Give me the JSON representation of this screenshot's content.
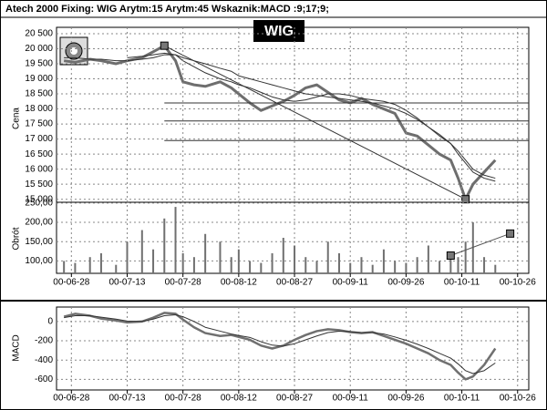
{
  "header": "Atech 2000  Fixing: WIG Arytm:15 Arytm:45  Wskaznik:MACD :9;17;9;",
  "chart_data": [
    {
      "type": "line",
      "title": "WIG",
      "ylabel": "Cena",
      "x": [
        "00-06-26",
        "00-06-29",
        "00-07-03",
        "00-07-06",
        "00-07-10",
        "00-07-13",
        "00-07-17",
        "00-07-20",
        "00-07-23",
        "00-07-26",
        "00-07-28",
        "00-07-31",
        "00-08-03",
        "00-08-07",
        "00-08-10",
        "00-08-12",
        "00-08-15",
        "00-08-18",
        "00-08-21",
        "00-08-24",
        "00-08-27",
        "00-08-30",
        "00-09-02",
        "00-09-05",
        "00-09-08",
        "00-09-11",
        "00-09-14",
        "00-09-17",
        "00-09-20",
        "00-09-23",
        "00-09-26",
        "00-09-29",
        "00-10-02",
        "00-10-05",
        "00-10-08",
        "00-10-10",
        "00-10-12",
        "00-10-14",
        "00-10-17",
        "00-10-20"
      ],
      "xlim": [
        "00-06-24",
        "00-10-29"
      ],
      "ylim": [
        14900,
        20710
      ],
      "yticks": [
        {
          "value": 15000,
          "label": "15 000"
        },
        {
          "value": 15500,
          "label": "15 500"
        },
        {
          "value": 16000,
          "label": "16 000"
        },
        {
          "value": 16500,
          "label": "16 500"
        },
        {
          "value": 17000,
          "label": "17 000"
        },
        {
          "value": 17500,
          "label": "17 500"
        },
        {
          "value": 18000,
          "label": "18 000"
        },
        {
          "value": 18500,
          "label": "18 500"
        },
        {
          "value": 19000,
          "label": "19 000"
        },
        {
          "value": 19500,
          "label": "19 500"
        },
        {
          "value": 20000,
          "label": "20 000"
        },
        {
          "value": 20500,
          "label": "20 500"
        }
      ],
      "grid": true,
      "series": [
        {
          "color": "#6e6e6e",
          "width": 3,
          "values": [
            19600,
            19550,
            19650,
            19600,
            19500,
            19600,
            19700,
            19900,
            20100,
            19600,
            18900,
            18800,
            18750,
            18900,
            18700,
            18500,
            18200,
            17950,
            18100,
            18250,
            18450,
            18700,
            18800,
            18550,
            18300,
            18200,
            18350,
            18150,
            18000,
            17850,
            17200,
            17100,
            16800,
            16500,
            16300,
            15700,
            15000,
            15500,
            15900,
            16300
          ]
        },
        {
          "color": "#333333",
          "width": 1,
          "values": [
            19700,
            19700,
            19650,
            19650,
            19600,
            19600,
            19650,
            19700,
            19800,
            19800,
            19600,
            19400,
            19200,
            19000,
            18900,
            18800,
            18700,
            18550,
            18400,
            18300,
            18250,
            18300,
            18400,
            18500,
            18500,
            18450,
            18350,
            18300,
            18250,
            18150,
            17950,
            17700,
            17400,
            17100,
            16850,
            16500,
            16200,
            15900,
            15700,
            15600
          ]
        },
        {
          "color": "#333333",
          "width": 1,
          "values": [
            null,
            null,
            null,
            null,
            null,
            19700,
            19750,
            19800,
            19850,
            19800,
            19700,
            19600,
            19500,
            19350,
            19250,
            19100,
            19000,
            18900,
            18800,
            18700,
            18600,
            18500,
            18450,
            18400,
            18350,
            18300,
            18250,
            18200,
            18100,
            18000,
            17850,
            17650,
            17400,
            17150,
            16850,
            16600,
            16300,
            16000,
            15800,
            15700
          ]
        },
        {
          "color": "#333333",
          "width": 1,
          "markers": true,
          "x": [
            "00-07-23",
            "00-10-12"
          ],
          "values": [
            20100,
            15000
          ]
        },
        {
          "color": "#333333",
          "width": 1,
          "x": [
            "00-07-23",
            "00-10-29"
          ],
          "values": [
            18200,
            18200
          ]
        },
        {
          "color": "#333333",
          "width": 1,
          "x": [
            "00-07-23",
            "00-10-29"
          ],
          "values": [
            17600,
            17600
          ]
        },
        {
          "color": "#333333",
          "width": 1,
          "x": [
            "00-07-23",
            "00-10-29"
          ],
          "values": [
            16950,
            16950
          ]
        }
      ]
    },
    {
      "type": "bar",
      "ylabel": "Obrót",
      "x": [
        "00-06-26",
        "00-06-29",
        "00-07-03",
        "00-07-06",
        "00-07-10",
        "00-07-13",
        "00-07-17",
        "00-07-20",
        "00-07-23",
        "00-07-26",
        "00-07-28",
        "00-07-31",
        "00-08-03",
        "00-08-07",
        "00-08-10",
        "00-08-12",
        "00-08-15",
        "00-08-18",
        "00-08-21",
        "00-08-24",
        "00-08-27",
        "00-08-30",
        "00-09-02",
        "00-09-05",
        "00-09-08",
        "00-09-11",
        "00-09-14",
        "00-09-17",
        "00-09-20",
        "00-09-23",
        "00-09-26",
        "00-09-29",
        "00-10-02",
        "00-10-05",
        "00-10-08",
        "00-10-10",
        "00-10-12",
        "00-10-14",
        "00-10-17",
        "00-10-20"
      ],
      "xlim": [
        "00-06-24",
        "00-10-29"
      ],
      "xticks": [
        "00-06-28",
        "00-07-13",
        "00-07-28",
        "00-08-12",
        "00-08-27",
        "00-09-11",
        "00-09-26",
        "00-10-11",
        "00-10-26"
      ],
      "ylim": [
        68,
        252
      ],
      "yticks": [
        {
          "value": 100,
          "label": "100,00"
        },
        {
          "value": 150,
          "label": "150,00"
        },
        {
          "value": 200,
          "label": "200,00"
        },
        {
          "value": 250,
          "label": "250,00"
        }
      ],
      "grid": true,
      "series": [
        {
          "color": "#707070",
          "values": [
            100,
            95,
            110,
            120,
            90,
            150,
            180,
            130,
            210,
            240,
            120,
            110,
            170,
            150,
            110,
            130,
            100,
            95,
            120,
            160,
            140,
            110,
            100,
            150,
            120,
            95,
            110,
            90,
            130,
            100,
            95,
            110,
            140,
            100,
            120,
            110,
            150,
            200,
            110,
            90
          ]
        },
        {
          "type": "line",
          "color": "#555555",
          "width": 1,
          "markers": true,
          "x": [
            "00-10-08",
            "00-10-24"
          ],
          "values": [
            114,
            171
          ]
        }
      ]
    },
    {
      "type": "line",
      "ylabel": "MACD",
      "x": [
        "00-06-26",
        "00-06-29",
        "00-07-03",
        "00-07-06",
        "00-07-10",
        "00-07-13",
        "00-07-17",
        "00-07-20",
        "00-07-23",
        "00-07-26",
        "00-07-28",
        "00-07-31",
        "00-08-03",
        "00-08-07",
        "00-08-10",
        "00-08-12",
        "00-08-15",
        "00-08-18",
        "00-08-21",
        "00-08-24",
        "00-08-27",
        "00-08-30",
        "00-09-02",
        "00-09-05",
        "00-09-08",
        "00-09-11",
        "00-09-14",
        "00-09-17",
        "00-09-20",
        "00-09-23",
        "00-09-26",
        "00-09-29",
        "00-10-02",
        "00-10-05",
        "00-10-08",
        "00-10-10",
        "00-10-12",
        "00-10-14",
        "00-10-17",
        "00-10-20"
      ],
      "xlim": [
        "00-06-24",
        "00-10-29"
      ],
      "xticks": [
        "00-06-28",
        "00-07-13",
        "00-07-28",
        "00-08-12",
        "00-08-27",
        "00-09-11",
        "00-09-26",
        "00-10-11",
        "00-10-26"
      ],
      "ylim": [
        -710,
        150
      ],
      "yticks": [
        -600,
        -400,
        -200,
        0
      ],
      "grid": true,
      "series": [
        {
          "color": "#707070",
          "width": 2.5,
          "values": [
            50,
            80,
            60,
            30,
            10,
            -10,
            0,
            40,
            90,
            80,
            20,
            -60,
            -120,
            -150,
            -140,
            -160,
            -190,
            -250,
            -280,
            -250,
            -190,
            -140,
            -100,
            -80,
            -90,
            -110,
            -120,
            -110,
            -150,
            -190,
            -230,
            -280,
            -330,
            -400,
            -450,
            -530,
            -600,
            -570,
            -450,
            -280
          ]
        },
        {
          "color": "#333333",
          "width": 1,
          "values": [
            40,
            60,
            60,
            45,
            25,
            5,
            0,
            25,
            60,
            70,
            50,
            0,
            -60,
            -100,
            -130,
            -145,
            -165,
            -210,
            -245,
            -255,
            -230,
            -190,
            -150,
            -115,
            -100,
            -105,
            -115,
            -115,
            -130,
            -160,
            -195,
            -235,
            -280,
            -330,
            -380,
            -440,
            -510,
            -540,
            -510,
            -430
          ]
        }
      ]
    }
  ]
}
